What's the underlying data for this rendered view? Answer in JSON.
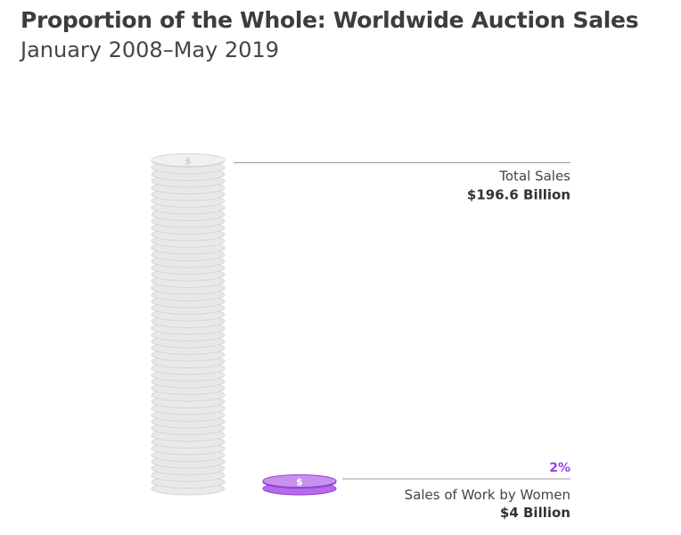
{
  "title": "Proportion of the Whole: Worldwide Auction Sales",
  "subtitle": "January 2008–May 2019",
  "chart_data": {
    "type": "bar",
    "categories": [
      "Total Sales",
      "Sales of Work by Women"
    ],
    "values": [
      196.6,
      4
    ],
    "unit": "Billion USD",
    "value_labels": [
      "$196.6 Billion",
      "$4 Billion"
    ],
    "percent_label": "2%",
    "colors": {
      "total": "#e9e9e9",
      "women": "#b46ce8",
      "percent_text": "#9b3fe0",
      "leader_line": "#9a9a9a"
    },
    "icon": "dollar-coin-icon"
  }
}
